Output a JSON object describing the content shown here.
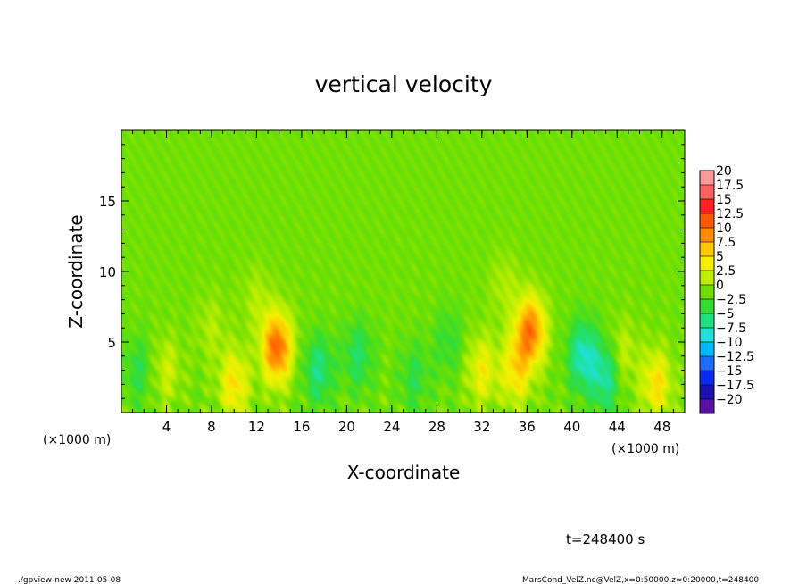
{
  "chart_data": {
    "type": "heatmap",
    "title": "vertical velocity",
    "xlabel": "X-coordinate",
    "ylabel": "Z-coordinate",
    "x_unit_left": "(×1000 m)",
    "x_unit_right": "(×1000 m)",
    "xlim": [
      0,
      50
    ],
    "ylim": [
      0,
      20
    ],
    "x_ticks": [
      "4",
      "8",
      "12",
      "16",
      "20",
      "24",
      "28",
      "32",
      "36",
      "40",
      "44",
      "48"
    ],
    "x_tick_values": [
      4,
      8,
      12,
      16,
      20,
      24,
      28,
      32,
      36,
      40,
      44,
      48
    ],
    "y_ticks": [
      "5",
      "10",
      "15"
    ],
    "y_tick_values": [
      5,
      10,
      15
    ],
    "colorbar": {
      "labels": [
        "20",
        "17.5",
        "15",
        "12.5",
        "10",
        "7.5",
        "5",
        "2.5",
        "0",
        "−2.5",
        "−5",
        "−7.5",
        "−10",
        "−12.5",
        "−15",
        "−17.5",
        "−20"
      ],
      "values": [
        20,
        17.5,
        15,
        12.5,
        10,
        7.5,
        5,
        2.5,
        0,
        -2.5,
        -5,
        -7.5,
        -10,
        -12.5,
        -15,
        -17.5,
        -20
      ],
      "colors": [
        "#ff9a9a",
        "#ff6060",
        "#ff2020",
        "#ff5a00",
        "#ff8c00",
        "#ffc800",
        "#f5f000",
        "#bfef00",
        "#70e000",
        "#33dd33",
        "#20e080",
        "#20e0d8",
        "#00b8ff",
        "#1c6cff",
        "#0a2aee",
        "#1a10b0",
        "#5a10a8"
      ]
    },
    "features": [
      {
        "x": 13.8,
        "z": 4.6,
        "w": 12
      },
      {
        "x": 36.3,
        "z": 5.8,
        "w": 11
      },
      {
        "x": 35.0,
        "z": 3.0,
        "w": 6
      },
      {
        "x": 10.0,
        "z": 2.0,
        "w": 6
      },
      {
        "x": 47.5,
        "z": 2.0,
        "w": 6
      },
      {
        "x": 32.0,
        "z": 3.0,
        "w": 5
      },
      {
        "x": 4.0,
        "z": 3.0,
        "w": 3
      },
      {
        "x": 44.5,
        "z": 4.0,
        "w": 3
      },
      {
        "x": 17.5,
        "z": 3.0,
        "w": -5
      },
      {
        "x": 21.0,
        "z": 4.0,
        "w": -4
      },
      {
        "x": 1.5,
        "z": 3.0,
        "w": -3
      },
      {
        "x": 41.0,
        "z": 4.0,
        "w": -7
      },
      {
        "x": 43.0,
        "z": 2.5,
        "w": -6
      },
      {
        "x": 26.0,
        "z": 2.5,
        "w": -3
      },
      {
        "x": 29.0,
        "z": 5.0,
        "w": -2.5
      },
      {
        "x": 8.0,
        "z": 6.0,
        "w": 2
      },
      {
        "x": 12.0,
        "z": 8.0,
        "w": 2
      },
      {
        "x": 34.0,
        "z": 9.0,
        "w": 2
      }
    ],
    "time_label": "t=248400 s"
  },
  "footer": {
    "left": "./gpview-new 2011-05-08",
    "right": "MarsCond_VelZ.nc@VelZ,x=0:50000,z=0:20000,t=248400"
  }
}
